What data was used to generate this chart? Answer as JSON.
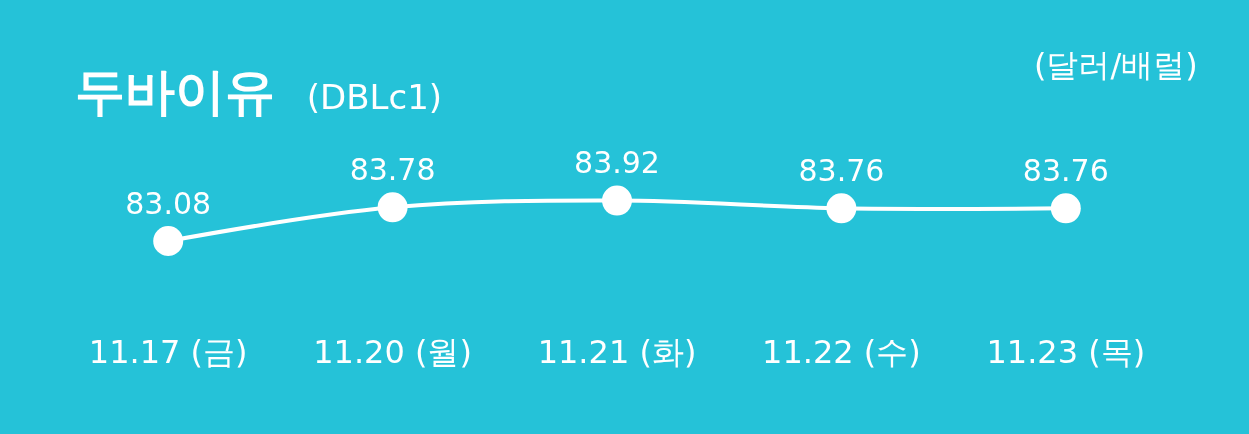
{
  "chart_data": {
    "type": "line",
    "title": "두바이유",
    "subtitle": "(DBLc1)",
    "annotations": [
      "(달러/배럴)"
    ],
    "categories": [
      "11.17 (금)",
      "11.20 (월)",
      "11.21 (화)",
      "11.22 (수)",
      "11.23 (목)"
    ],
    "series": [
      {
        "color": "#ffffff",
        "values": [
          83.08,
          83.78,
          83.92,
          83.76,
          83.76
        ]
      }
    ],
    "data_labels": true,
    "marker": "circle",
    "line_style": "solid",
    "grid": false,
    "legend": false
  }
}
